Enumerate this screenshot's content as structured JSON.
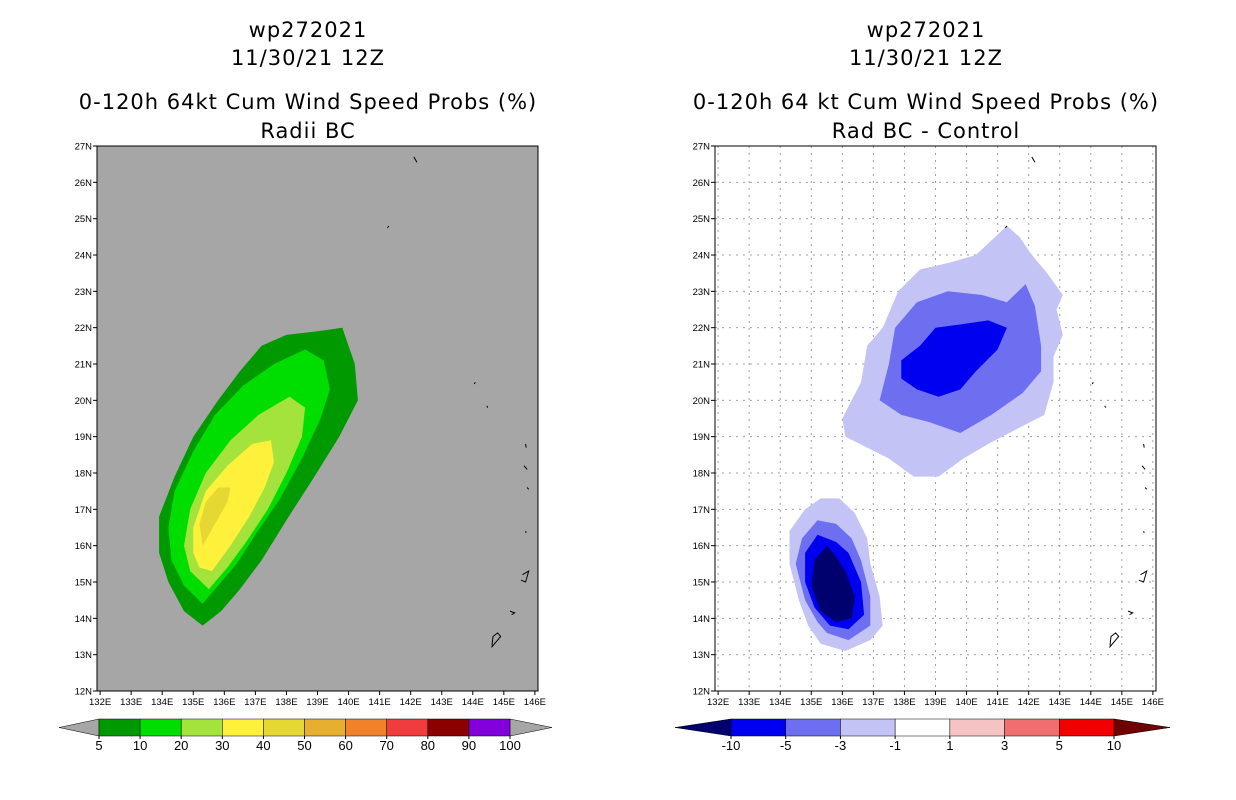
{
  "chart_data": [
    {
      "type": "heatmap",
      "storm_id": "wp272021",
      "date": "11/30/21 12Z",
      "title": "0-120h 64kt Cum Wind Speed Probs (%)",
      "subtitle": "Radii BC",
      "x_ticks": [
        "132E",
        "133E",
        "134E",
        "135E",
        "136E",
        "137E",
        "138E",
        "139E",
        "140E",
        "141E",
        "142E",
        "143E",
        "144E",
        "145E",
        "146E"
      ],
      "y_ticks": [
        "12N",
        "13N",
        "14N",
        "15N",
        "16N",
        "17N",
        "18N",
        "19N",
        "20N",
        "21N",
        "22N",
        "23N",
        "24N",
        "25N",
        "26N",
        "27N"
      ],
      "xlim": [
        131.9,
        146.1
      ],
      "ylim": [
        12,
        27
      ],
      "background_color": "#a6a6a6",
      "colorbar": {
        "labels": [
          "5",
          "10",
          "20",
          "30",
          "40",
          "50",
          "60",
          "70",
          "80",
          "90",
          "100"
        ],
        "colors": [
          "#009900",
          "#00dd00",
          "#a4e33c",
          "#fff03c",
          "#e6d832",
          "#e6af2d",
          "#f0822a",
          "#f03c3c",
          "#8c0000",
          "#8200dc"
        ]
      },
      "contours": [
        {
          "level": 5,
          "color": "#009900",
          "points": [
            [
              135.3,
              13.8
            ],
            [
              135.9,
              14.2
            ],
            [
              136.5,
              14.8
            ],
            [
              137.2,
              15.6
            ],
            [
              138.0,
              16.7
            ],
            [
              138.9,
              17.9
            ],
            [
              139.7,
              19.0
            ],
            [
              140.3,
              20.0
            ],
            [
              140.2,
              21.0
            ],
            [
              139.8,
              22.0
            ],
            [
              139.0,
              21.9
            ],
            [
              138.0,
              21.8
            ],
            [
              137.2,
              21.5
            ],
            [
              136.5,
              20.8
            ],
            [
              135.8,
              20.0
            ],
            [
              135.0,
              19.0
            ],
            [
              134.4,
              17.9
            ],
            [
              133.9,
              16.8
            ],
            [
              133.9,
              15.8
            ],
            [
              134.2,
              15.0
            ],
            [
              134.7,
              14.2
            ]
          ]
        },
        {
          "level": 10,
          "color": "#00dd00",
          "points": [
            [
              135.3,
              14.4
            ],
            [
              135.8,
              14.9
            ],
            [
              136.4,
              15.5
            ],
            [
              137.0,
              16.3
            ],
            [
              137.8,
              17.3
            ],
            [
              138.5,
              18.4
            ],
            [
              139.1,
              19.5
            ],
            [
              139.4,
              20.3
            ],
            [
              139.2,
              21.1
            ],
            [
              138.6,
              21.4
            ],
            [
              137.6,
              21.0
            ],
            [
              136.6,
              20.4
            ],
            [
              135.7,
              19.6
            ],
            [
              135.0,
              18.6
            ],
            [
              134.4,
              17.5
            ],
            [
              134.2,
              16.5
            ],
            [
              134.3,
              15.6
            ],
            [
              134.7,
              14.9
            ]
          ]
        },
        {
          "level": 20,
          "color": "#a4e33c",
          "points": [
            [
              135.5,
              14.8
            ],
            [
              136.1,
              15.4
            ],
            [
              136.7,
              16.1
            ],
            [
              137.4,
              17.0
            ],
            [
              138.0,
              18.0
            ],
            [
              138.5,
              19.0
            ],
            [
              138.6,
              19.8
            ],
            [
              138.1,
              20.1
            ],
            [
              137.1,
              19.6
            ],
            [
              136.2,
              18.9
            ],
            [
              135.4,
              18.0
            ],
            [
              134.9,
              17.0
            ],
            [
              134.7,
              16.0
            ],
            [
              134.9,
              15.3
            ]
          ]
        },
        {
          "level": 30,
          "color": "#fff03c",
          "points": [
            [
              135.6,
              15.3
            ],
            [
              136.2,
              16.0
            ],
            [
              136.8,
              16.8
            ],
            [
              137.3,
              17.6
            ],
            [
              137.6,
              18.3
            ],
            [
              137.5,
              18.9
            ],
            [
              136.9,
              18.8
            ],
            [
              136.1,
              18.2
            ],
            [
              135.4,
              17.5
            ],
            [
              135.0,
              16.5
            ],
            [
              135.0,
              15.8
            ],
            [
              135.2,
              15.4
            ]
          ]
        },
        {
          "level": 40,
          "color": "#e6d832",
          "points": [
            [
              135.3,
              16.0
            ],
            [
              135.7,
              16.6
            ],
            [
              136.1,
              17.2
            ],
            [
              136.2,
              17.6
            ],
            [
              135.8,
              17.6
            ],
            [
              135.4,
              17.2
            ],
            [
              135.2,
              16.6
            ]
          ]
        }
      ],
      "coast": {
        "color": "#000000"
      }
    },
    {
      "type": "heatmap",
      "storm_id": "wp272021",
      "date": "11/30/21 12Z",
      "title": "0-120h 64 kt Cum Wind Speed Probs (%)",
      "subtitle": "Rad BC - Control",
      "x_ticks": [
        "132E",
        "133E",
        "134E",
        "135E",
        "136E",
        "137E",
        "138E",
        "139E",
        "140E",
        "141E",
        "142E",
        "143E",
        "144E",
        "145E",
        "146E"
      ],
      "y_ticks": [
        "12N",
        "13N",
        "14N",
        "15N",
        "16N",
        "17N",
        "18N",
        "19N",
        "20N",
        "21N",
        "22N",
        "23N",
        "24N",
        "25N",
        "26N",
        "27N"
      ],
      "xlim": [
        131.9,
        146.1
      ],
      "ylim": [
        12,
        27
      ],
      "grid": true,
      "background_color": "#ffffff",
      "colorbar": {
        "labels": [
          "-10",
          "-5",
          "-3",
          "-1",
          "1",
          "3",
          "5",
          "10"
        ],
        "colors": [
          "#00006e",
          "#0000f0",
          "#6e6ef0",
          "#c3c3f5",
          "#ffffff",
          "#f5c3c3",
          "#f06e6e",
          "#f00000",
          "#6e0000"
        ]
      },
      "contours": [
        {
          "level": -1,
          "color": "#c3c3f5",
          "points": [
            [
              136.0,
              19.5
            ],
            [
              136.6,
              20.5
            ],
            [
              136.8,
              21.5
            ],
            [
              137.3,
              22.0
            ],
            [
              137.8,
              23.0
            ],
            [
              138.5,
              23.6
            ],
            [
              139.5,
              23.8
            ],
            [
              140.3,
              24.0
            ],
            [
              140.8,
              24.4
            ],
            [
              141.3,
              24.8
            ],
            [
              141.7,
              24.5
            ],
            [
              142.1,
              24.0
            ],
            [
              142.6,
              23.5
            ],
            [
              143.1,
              22.9
            ],
            [
              142.9,
              22.5
            ],
            [
              143.1,
              21.8
            ],
            [
              142.8,
              21.2
            ],
            [
              142.8,
              20.5
            ],
            [
              142.5,
              19.6
            ],
            [
              141.6,
              19.2
            ],
            [
              140.7,
              18.8
            ],
            [
              139.9,
              18.4
            ],
            [
              139.1,
              17.9
            ],
            [
              138.3,
              17.9
            ],
            [
              137.5,
              18.4
            ],
            [
              136.8,
              18.7
            ],
            [
              136.1,
              19.0
            ]
          ]
        },
        {
          "level": -3,
          "color": "#6e6ef0",
          "points": [
            [
              137.2,
              20.0
            ],
            [
              137.5,
              21.0
            ],
            [
              137.7,
              22.0
            ],
            [
              138.4,
              22.7
            ],
            [
              139.4,
              23.0
            ],
            [
              140.5,
              22.9
            ],
            [
              141.3,
              22.7
            ],
            [
              141.9,
              23.2
            ],
            [
              142.2,
              22.6
            ],
            [
              142.4,
              21.5
            ],
            [
              142.4,
              20.8
            ],
            [
              141.8,
              20.2
            ],
            [
              140.8,
              19.6
            ],
            [
              139.8,
              19.1
            ],
            [
              138.8,
              19.4
            ],
            [
              137.9,
              19.6
            ]
          ]
        },
        {
          "level": -5,
          "color": "#0000f0",
          "points": [
            [
              137.9,
              20.6
            ],
            [
              137.9,
              21.1
            ],
            [
              138.5,
              21.5
            ],
            [
              139.0,
              22.0
            ],
            [
              139.9,
              22.1
            ],
            [
              140.7,
              22.2
            ],
            [
              141.3,
              22.0
            ],
            [
              141.0,
              21.4
            ],
            [
              140.3,
              20.8
            ],
            [
              139.8,
              20.3
            ],
            [
              139.1,
              20.1
            ],
            [
              138.4,
              20.3
            ]
          ]
        },
        {
          "level": -1,
          "color": "#c3c3f5",
          "points": [
            [
              135.3,
              13.3
            ],
            [
              136.1,
              13.1
            ],
            [
              136.9,
              13.4
            ],
            [
              137.3,
              13.8
            ],
            [
              137.2,
              14.6
            ],
            [
              136.9,
              15.5
            ],
            [
              136.8,
              16.2
            ],
            [
              136.4,
              16.9
            ],
            [
              135.9,
              17.3
            ],
            [
              135.3,
              17.3
            ],
            [
              134.8,
              17.0
            ],
            [
              134.3,
              16.4
            ],
            [
              134.3,
              15.5
            ],
            [
              134.6,
              14.5
            ],
            [
              134.9,
              13.8
            ]
          ]
        },
        {
          "level": -3,
          "color": "#6e6ef0",
          "points": [
            [
              135.5,
              13.6
            ],
            [
              136.2,
              13.4
            ],
            [
              136.9,
              13.8
            ],
            [
              136.9,
              14.6
            ],
            [
              136.6,
              15.6
            ],
            [
              136.3,
              16.2
            ],
            [
              135.8,
              16.6
            ],
            [
              135.2,
              16.7
            ],
            [
              134.7,
              16.2
            ],
            [
              134.5,
              15.5
            ],
            [
              134.8,
              14.5
            ],
            [
              135.2,
              13.9
            ]
          ]
        },
        {
          "level": -5,
          "color": "#0000f0",
          "points": [
            [
              135.6,
              13.8
            ],
            [
              136.2,
              13.7
            ],
            [
              136.7,
              14.1
            ],
            [
              136.6,
              15.0
            ],
            [
              136.2,
              15.8
            ],
            [
              135.8,
              16.1
            ],
            [
              135.2,
              16.3
            ],
            [
              134.8,
              15.8
            ],
            [
              134.8,
              15.0
            ],
            [
              135.1,
              14.3
            ]
          ]
        },
        {
          "level": -10,
          "color": "#00006e",
          "points": [
            [
              135.8,
              13.9
            ],
            [
              136.3,
              14.0
            ],
            [
              136.4,
              14.6
            ],
            [
              136.1,
              15.3
            ],
            [
              135.8,
              15.7
            ],
            [
              135.5,
              16.0
            ],
            [
              135.1,
              15.6
            ],
            [
              135.0,
              14.9
            ],
            [
              135.3,
              14.2
            ]
          ]
        }
      ],
      "coast": {
        "color": "#000000"
      }
    }
  ]
}
